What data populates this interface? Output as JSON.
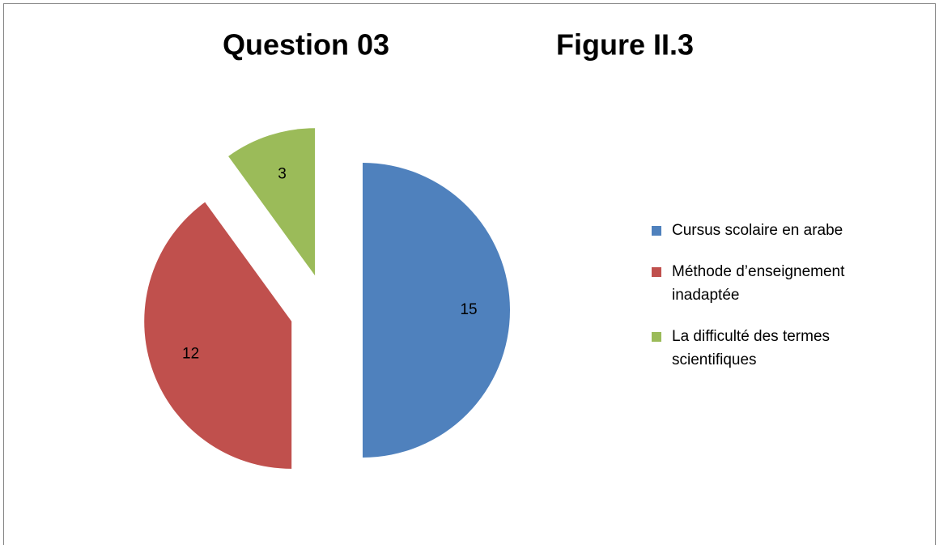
{
  "chart_data": {
    "type": "pie",
    "title": "Question 03",
    "subtitle": "Figure II.3",
    "categories": [
      "Cursus scolaire en arabe",
      "Méthode d’enseignement inadaptée",
      "La difficulté des termes scientifiques"
    ],
    "values": [
      15,
      12,
      3
    ],
    "colors": [
      "#4f81bd",
      "#c0504d",
      "#9bbb59"
    ],
    "legend": "right"
  }
}
